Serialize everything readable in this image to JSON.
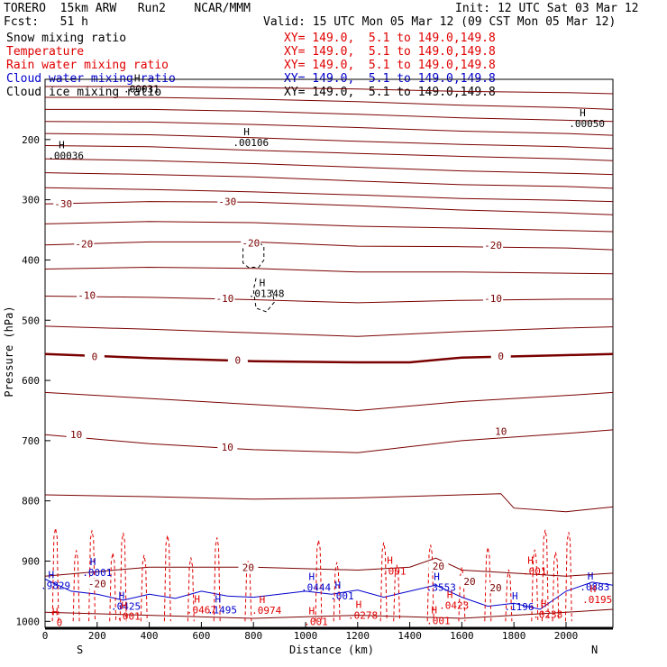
{
  "header": {
    "model": "TORERO  15km ARW   Run2    NCAR/MMM",
    "init": "Init: 12 UTC Sat 03 Mar 12",
    "fcst": "Fcst:   51 h",
    "valid": "Valid: 15 UTC Mon 05 Mar 12 (09 CST Mon 05 Mar 12)"
  },
  "legend": [
    {
      "name": "Snow mixing ratio",
      "xy": "XY= 149.0,  5.1 to 149.0,149.8",
      "color": "#000000"
    },
    {
      "name": "Temperature",
      "xy": "XY= 149.0,  5.1 to 149.0,149.8",
      "color": "#e00000"
    },
    {
      "name": "Rain water mixing ratio",
      "xy": "XY= 149.0,  5.1 to 149.0,149.8",
      "color": "#e00000"
    },
    {
      "name": "Cloud water mixing ratio",
      "xy": "XY= 149.0,  5.1 to 149.0,149.8",
      "color": "#0000cc"
    },
    {
      "name": "Cloud ice mixing ratio",
      "xy": "XY= 149.0,  5.1 to 149.0,149.8",
      "color": "#000000"
    }
  ],
  "chart_data": {
    "type": "line",
    "xlabel": "Distance (km)",
    "ylabel": "Pressure (hPa)",
    "xlim": [
      0,
      2180
    ],
    "ylim": [
      1010,
      100
    ],
    "x_ticks": [
      "0",
      "200",
      "400",
      "600",
      "800",
      "1000",
      "1200",
      "1400",
      "1600",
      "1800",
      "2000"
    ],
    "y_ticks": [
      "200",
      "300",
      "400",
      "500",
      "600",
      "700",
      "800",
      "900",
      "1000"
    ],
    "x_end_labels": [
      "S",
      "N"
    ],
    "isotherm_labels": [
      {
        "text": "-30",
        "x": 70,
        "p": 308
      },
      {
        "text": "-30",
        "x": 700,
        "p": 304
      },
      {
        "text": "-20",
        "x": 150,
        "p": 375
      },
      {
        "text": "-20",
        "x": 790,
        "p": 373
      },
      {
        "text": "-20",
        "x": 1720,
        "p": 377
      },
      {
        "text": "-10",
        "x": 160,
        "p": 460
      },
      {
        "text": "-10",
        "x": 690,
        "p": 465
      },
      {
        "text": "-10",
        "x": 1720,
        "p": 465
      },
      {
        "text": "0",
        "x": 190,
        "p": 562
      },
      {
        "text": "0",
        "x": 740,
        "p": 568
      },
      {
        "text": "0",
        "x": 1750,
        "p": 561
      },
      {
        "text": "10",
        "x": 120,
        "p": 691
      },
      {
        "text": "10",
        "x": 700,
        "p": 712
      },
      {
        "text": "10",
        "x": 1750,
        "p": 686
      },
      {
        "text": "20",
        "x": 780,
        "p": 912
      },
      {
        "text": "20",
        "x": 1510,
        "p": 910
      },
      {
        "text": "20",
        "x": 1730,
        "p": 946
      },
      {
        "text": "20",
        "x": 1630,
        "p": 935
      },
      {
        "text": "-20",
        "x": 200,
        "p": 939
      }
    ],
    "max_labels": [
      {
        "text": ".00036",
        "x": 80,
        "p": 228,
        "color": "#000000"
      },
      {
        "text": ".00106",
        "x": 790,
        "p": 206,
        "color": "#000000"
      },
      {
        "text": ".00050",
        "x": 2080,
        "p": 175,
        "color": "#000000"
      },
      {
        "text": ".00031",
        "x": 370,
        "p": 117,
        "color": "#000000"
      },
      {
        "text": ".01348",
        "x": 850,
        "p": 457,
        "color": "#000000"
      },
      {
        "text": ".0001",
        "x": 200,
        "p": 920,
        "color": "#0000cc"
      },
      {
        "text": ".9829",
        "x": 40,
        "p": 942,
        "color": "#0000cc"
      },
      {
        "text": ".0425",
        "x": 310,
        "p": 976,
        "color": "#0000cc"
      },
      {
        "text": ".001",
        "x": 320,
        "p": 993,
        "color": "#e00000"
      },
      {
        "text": ".0467",
        "x": 600,
        "p": 982,
        "color": "#e00000"
      },
      {
        "text": ".1495",
        "x": 680,
        "p": 982,
        "color": "#0000cc"
      },
      {
        "text": ".0974",
        "x": 850,
        "p": 983,
        "color": "#e00000"
      },
      {
        "text": ".0444",
        "x": 1040,
        "p": 945,
        "color": "#0000cc"
      },
      {
        "text": ".001",
        "x": 1140,
        "p": 959,
        "color": "#0000cc"
      },
      {
        "text": ".001",
        "x": 1040,
        "p": 1002,
        "color": "#e00000"
      },
      {
        "text": ".0278",
        "x": 1220,
        "p": 991,
        "color": "#e00000"
      },
      {
        "text": ".001",
        "x": 1340,
        "p": 918,
        "color": "#e00000"
      },
      {
        "text": ".3553",
        "x": 1520,
        "p": 945,
        "color": "#0000cc"
      },
      {
        "text": ".0423",
        "x": 1570,
        "p": 975,
        "color": "#e00000"
      },
      {
        "text": ".001",
        "x": 1510,
        "p": 1000,
        "color": "#e00000"
      },
      {
        "text": ".1196",
        "x": 1820,
        "p": 977,
        "color": "#0000cc"
      },
      {
        "text": ".0238",
        "x": 1930,
        "p": 990,
        "color": "#e00000"
      },
      {
        "text": ".001",
        "x": 1880,
        "p": 918,
        "color": "#e00000"
      },
      {
        "text": ".0883",
        "x": 2110,
        "p": 944,
        "color": "#0000cc"
      },
      {
        "text": ".0195",
        "x": 2120,
        "p": 965,
        "color": "#e00000"
      },
      {
        "text": "0",
        "x": 55,
        "p": 1003,
        "color": "#e00000"
      }
    ],
    "series": [
      {
        "name": "Temperature",
        "color": "#7a0000",
        "levels": [
          [
            [
              0,
              112
            ],
            [
              400,
              112
            ],
            [
              800,
              114
            ],
            [
              1200,
              116
            ],
            [
              1600,
              120
            ],
            [
              2000,
              122
            ],
            [
              2180,
              124
            ]
          ],
          [
            [
              0,
              130
            ],
            [
              400,
              130
            ],
            [
              800,
              133
            ],
            [
              1200,
              137
            ],
            [
              1600,
              143
            ],
            [
              2000,
              147
            ],
            [
              2180,
              150
            ]
          ],
          [
            [
              0,
              150
            ],
            [
              400,
              150
            ],
            [
              800,
              153
            ],
            [
              1200,
              158
            ],
            [
              1600,
              164
            ],
            [
              2000,
              168
            ],
            [
              2180,
              170
            ]
          ],
          [
            [
              0,
              170
            ],
            [
              400,
              171
            ],
            [
              800,
              175
            ],
            [
              1200,
              180
            ],
            [
              1600,
              186
            ],
            [
              2000,
              190
            ],
            [
              2180,
              193
            ]
          ],
          [
            [
              0,
              190
            ],
            [
              400,
              192
            ],
            [
              800,
              197
            ],
            [
              1200,
              203
            ],
            [
              1600,
              208
            ],
            [
              2000,
              212
            ],
            [
              2180,
              215
            ]
          ],
          [
            [
              0,
              210
            ],
            [
              400,
              212
            ],
            [
              800,
              218
            ],
            [
              1200,
              223
            ],
            [
              1600,
              228
            ],
            [
              2000,
              232
            ],
            [
              2180,
              235
            ]
          ],
          [
            [
              0,
              232
            ],
            [
              400,
              235
            ],
            [
              800,
              240
            ],
            [
              1200,
              246
            ],
            [
              1600,
              252
            ],
            [
              2000,
              256
            ],
            [
              2180,
              258
            ]
          ],
          [
            [
              0,
              255
            ],
            [
              400,
              258
            ],
            [
              800,
              262
            ],
            [
              1200,
              269
            ],
            [
              1600,
              275
            ],
            [
              2000,
              278
            ],
            [
              2180,
              281
            ]
          ],
          [
            [
              0,
              280
            ],
            [
              400,
              283
            ],
            [
              800,
              287
            ],
            [
              1200,
              292
            ],
            [
              1600,
              298
            ],
            [
              2000,
              301
            ],
            [
              2180,
              303
            ]
          ],
          [
            [
              0,
              307
            ],
            [
              400,
              303
            ],
            [
              800,
              304
            ],
            [
              1200,
              310
            ],
            [
              1600,
              317
            ],
            [
              2000,
              322
            ],
            [
              2180,
              325
            ]
          ],
          [
            [
              0,
              340
            ],
            [
              400,
              336
            ],
            [
              800,
              338
            ],
            [
              1200,
              344
            ],
            [
              1600,
              347
            ],
            [
              2000,
              351
            ],
            [
              2180,
              353
            ]
          ],
          [
            [
              0,
              375
            ],
            [
              400,
              370
            ],
            [
              800,
              370
            ],
            [
              1200,
              377
            ],
            [
              1600,
              378
            ],
            [
              2000,
              380
            ],
            [
              2180,
              383
            ]
          ],
          [
            [
              0,
              415
            ],
            [
              400,
              412
            ],
            [
              800,
              414
            ],
            [
              1200,
              420
            ],
            [
              1600,
              420
            ],
            [
              2000,
              422
            ],
            [
              2180,
              423
            ]
          ],
          [
            [
              0,
              460
            ],
            [
              400,
              462
            ],
            [
              800,
              466
            ],
            [
              1200,
              471
            ],
            [
              1600,
              467
            ],
            [
              2000,
              465
            ],
            [
              2180,
              465
            ]
          ],
          [
            [
              0,
              510
            ],
            [
              400,
              515
            ],
            [
              800,
              521
            ],
            [
              1200,
              527
            ],
            [
              1600,
              519
            ],
            [
              2000,
              513
            ],
            [
              2180,
              511
            ]
          ],
          [
            [
              0,
              620
            ],
            [
              400,
              630
            ],
            [
              800,
              640
            ],
            [
              1200,
              650
            ],
            [
              1600,
              635
            ],
            [
              2000,
              625
            ],
            [
              2180,
              620
            ]
          ],
          [
            [
              0,
              690
            ],
            [
              400,
              705
            ],
            [
              800,
              715
            ],
            [
              1200,
              720
            ],
            [
              1600,
              700
            ],
            [
              2000,
              688
            ],
            [
              2180,
              682
            ]
          ],
          [
            [
              0,
              790
            ],
            [
              400,
              793
            ],
            [
              800,
              797
            ],
            [
              1200,
              795
            ],
            [
              1600,
              790
            ],
            [
              1750,
              788
            ],
            [
              1800,
              812
            ],
            [
              2000,
              818
            ],
            [
              2180,
              810
            ]
          ],
          [
            [
              0,
              925
            ],
            [
              400,
              910
            ],
            [
              800,
              910
            ],
            [
              1200,
              915
            ],
            [
              1400,
              910
            ],
            [
              1500,
              895
            ],
            [
              1600,
              915
            ],
            [
              2000,
              925
            ],
            [
              2180,
              920
            ]
          ],
          [
            [
              0,
              985
            ],
            [
              400,
              990
            ],
            [
              800,
              995
            ],
            [
              1200,
              990
            ],
            [
              1600,
              995
            ],
            [
              2000,
              985
            ],
            [
              2180,
              980
            ]
          ]
        ]
      },
      {
        "name": "Temperature 0C",
        "color": "#7a0000",
        "bold": true,
        "points": [
          [
            0,
            556
          ],
          [
            400,
            563
          ],
          [
            800,
            568
          ],
          [
            1200,
            570
          ],
          [
            1400,
            570
          ],
          [
            1600,
            562
          ],
          [
            2000,
            558
          ],
          [
            2180,
            556
          ]
        ]
      },
      {
        "name": "Cloud water mixing ratio",
        "color": "#0000cc",
        "points": [
          [
            0,
            930
          ],
          [
            100,
            950
          ],
          [
            200,
            955
          ],
          [
            300,
            965
          ],
          [
            400,
            955
          ],
          [
            500,
            962
          ],
          [
            600,
            950
          ],
          [
            700,
            958
          ],
          [
            800,
            960
          ],
          [
            900,
            955
          ],
          [
            1000,
            950
          ],
          [
            1100,
            955
          ],
          [
            1200,
            948
          ],
          [
            1300,
            960
          ],
          [
            1400,
            950
          ],
          [
            1500,
            940
          ],
          [
            1600,
            960
          ],
          [
            1700,
            975
          ],
          [
            1800,
            970
          ],
          [
            1900,
            980
          ],
          [
            2000,
            950
          ],
          [
            2100,
            935
          ],
          [
            2180,
            940
          ]
        ]
      },
      {
        "name": "Ground",
        "color": "#000000",
        "bold": true,
        "points": [
          [
            0,
            1012
          ],
          [
            2180,
            1012
          ]
        ]
      }
    ]
  }
}
